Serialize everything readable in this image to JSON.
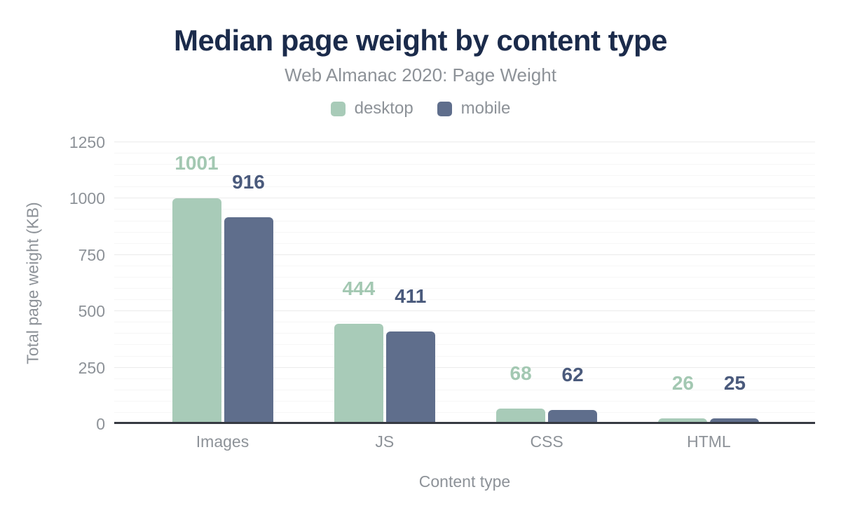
{
  "chart_data": {
    "type": "bar",
    "title": "Median page weight by content type",
    "subtitle": "Web Almanac 2020: Page Weight",
    "categories": [
      "Images",
      "JS",
      "CSS",
      "HTML"
    ],
    "series": [
      {
        "name": "desktop",
        "color": "#a8cbb8",
        "label_color": "#a3c8b2",
        "values": [
          1001,
          444,
          68,
          26
        ]
      },
      {
        "name": "mobile",
        "color": "#5f6e8c",
        "label_color": "#4a5a7c",
        "values": [
          916,
          411,
          62,
          25
        ]
      }
    ],
    "xlabel": "Content type",
    "ylabel": "Total page weight (KB)",
    "ylim": [
      0,
      1250
    ],
    "yticks": [
      0,
      250,
      500,
      750,
      1000,
      1250
    ],
    "minor_grid_step": 50,
    "grid": true,
    "legend_position": "top",
    "value_labels": true
  },
  "colors": {
    "background": "#ffffff",
    "title": "#1b2b4b",
    "text_gray": "#8d9298",
    "axis_line": "#363a42",
    "grid_major": "#ebebeb",
    "grid_minor": "#f6f6f6"
  }
}
